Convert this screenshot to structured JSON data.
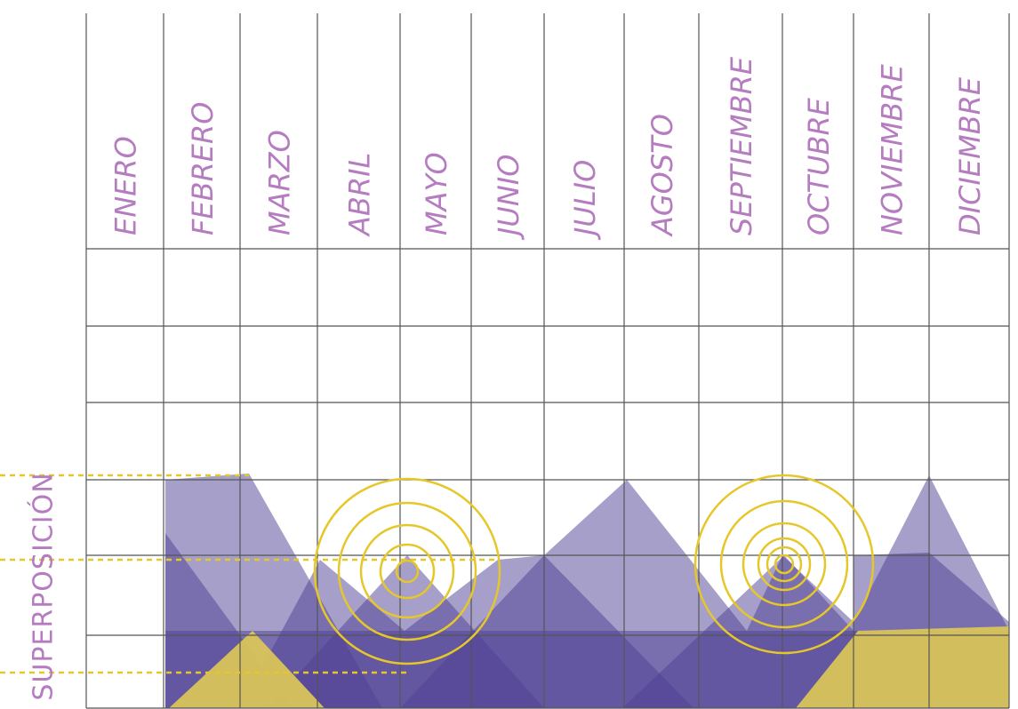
{
  "months": [
    "ENERO",
    "FEBRERO",
    "MARZO",
    "ABRIL",
    "MAYO",
    "JUNIO",
    "JULIO",
    "AGOSTO",
    "SEPTIEMBRE",
    "OCTUBRE",
    "NOVIEMBRE",
    "DICIEMBRE"
  ],
  "side_label": "SUPERPOSICIÓN"
}
